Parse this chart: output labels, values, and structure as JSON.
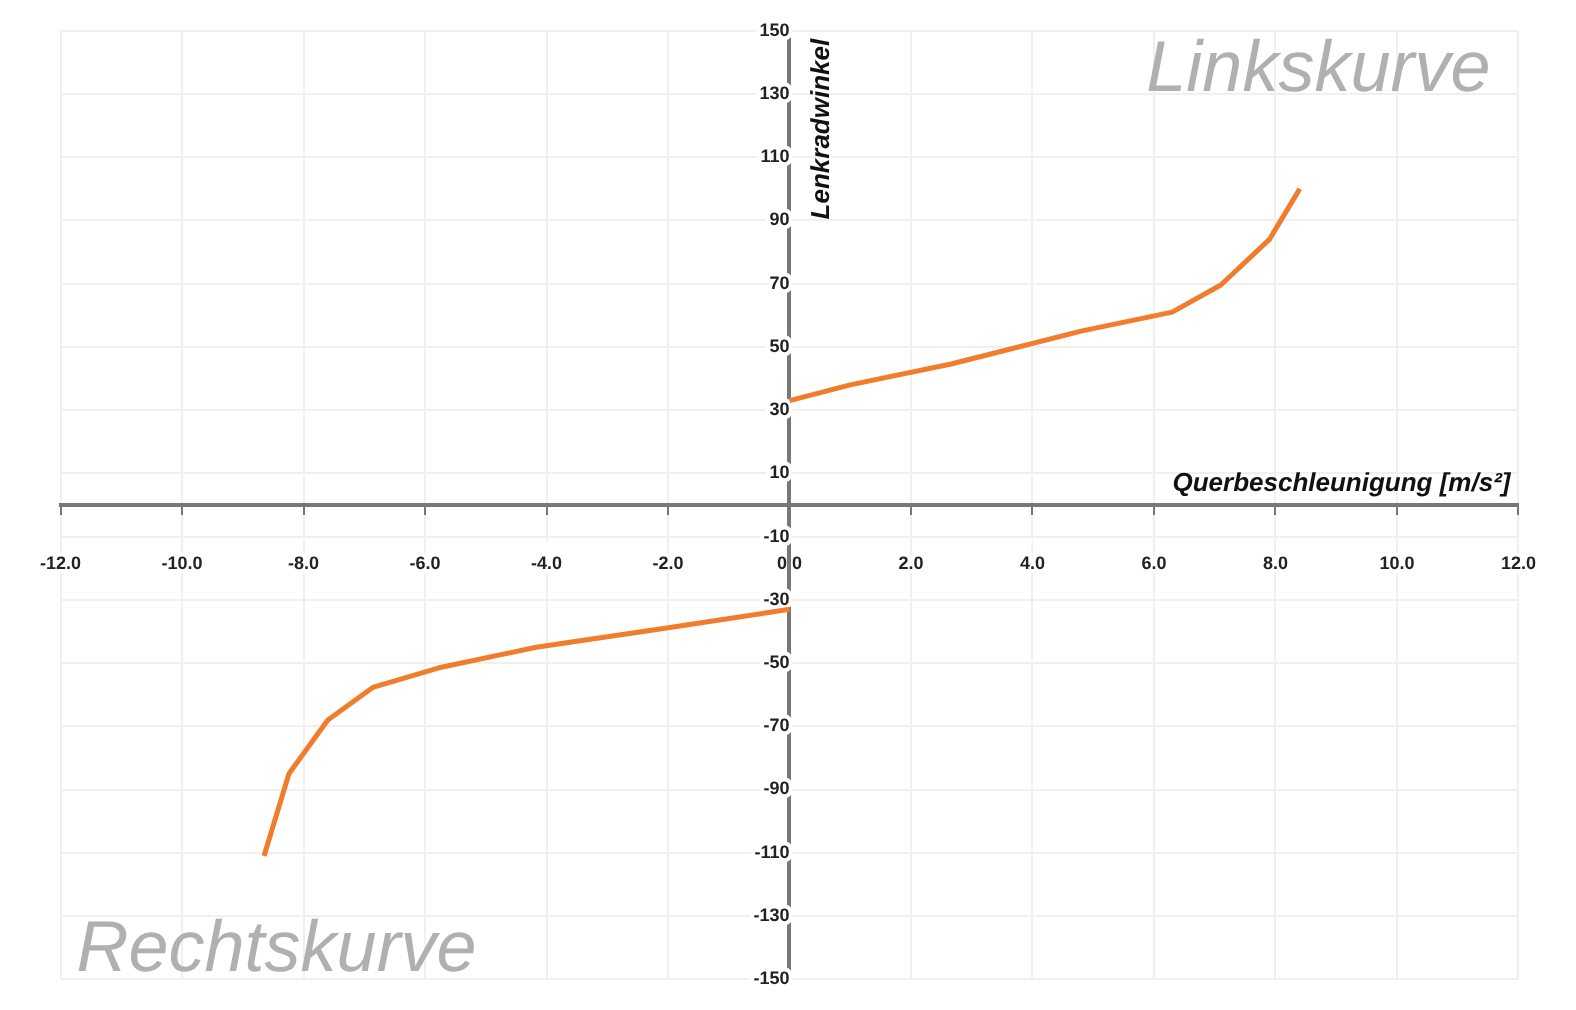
{
  "chart_data": {
    "type": "line",
    "xlabel": "Querbeschleunigung [m/s²]",
    "ylabel": "Lenkradwinkel",
    "annotations": [
      "Linkskurve",
      "Rechtskurve"
    ],
    "series": [
      {
        "color": "#f07c2c",
        "x": [
          0,
          1,
          2.66,
          4.8,
          6.3,
          7.1,
          7.9,
          8.4
        ],
        "values": [
          33,
          38,
          44.6,
          55,
          61,
          69.6,
          84,
          100
        ]
      },
      {
        "color": "#f07c2c",
        "x": [
          -8.65,
          -8.24,
          -7.6,
          -6.86,
          -5.77,
          -4.17,
          -2.05,
          0
        ],
        "values": [
          -111,
          -85,
          -68,
          -57.7,
          -51.5,
          -45,
          -39,
          -33
        ]
      }
    ],
    "xlim": [
      -12,
      12
    ],
    "xticks": [
      {
        "value": -12,
        "label": "-12.0"
      },
      {
        "value": -10,
        "label": "-10.0"
      },
      {
        "value": -8,
        "label": "-8.0"
      },
      {
        "value": -6,
        "label": "-6.0"
      },
      {
        "value": -4,
        "label": "-4.0"
      },
      {
        "value": -2,
        "label": "-2.0"
      },
      {
        "value": 0,
        "label": "0.0"
      },
      {
        "value": 2,
        "label": "2.0"
      },
      {
        "value": 4,
        "label": "4.0"
      },
      {
        "value": 6,
        "label": "6.0"
      },
      {
        "value": 8,
        "label": "8.0"
      },
      {
        "value": 10,
        "label": "10.0"
      },
      {
        "value": 12,
        "label": "12.0"
      }
    ],
    "ylim": [
      -150,
      150
    ],
    "yticks": [
      -150,
      -130,
      -110,
      -90,
      -70,
      -50,
      -30,
      -10,
      10,
      30,
      50,
      70,
      90,
      110,
      130,
      150
    ],
    "grid": true,
    "legend": false,
    "marker": "none",
    "line_style": "solid"
  }
}
